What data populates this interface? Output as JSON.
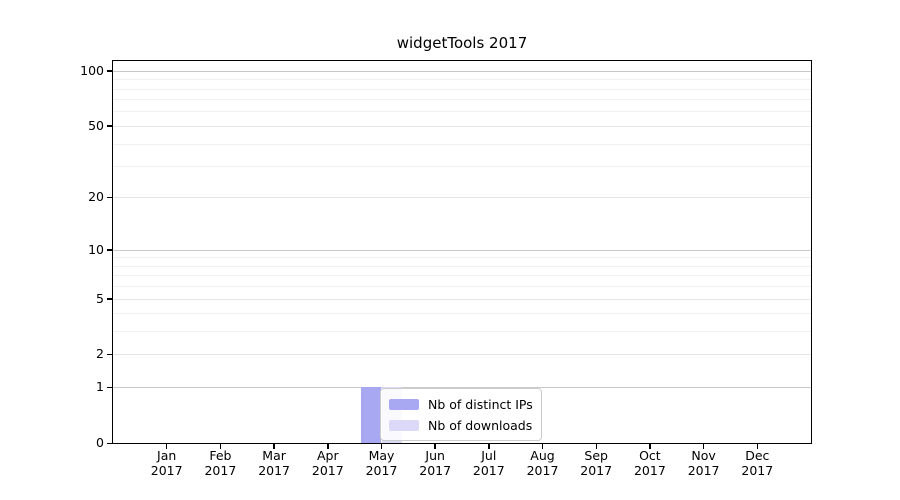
{
  "title": "widgetTools 2017",
  "chart_data": {
    "type": "bar",
    "title": "widgetTools 2017",
    "categories": [
      "Jan",
      "Feb",
      "Mar",
      "Apr",
      "May",
      "Jun",
      "Jul",
      "Aug",
      "Sep",
      "Oct",
      "Nov",
      "Dec"
    ],
    "category_subline": "2017",
    "series": [
      {
        "name": "Nb of distinct IPs",
        "color": "#a8a8f2",
        "values": [
          0,
          0,
          0,
          0,
          1,
          0,
          0,
          0,
          0,
          0,
          0,
          0
        ]
      },
      {
        "name": "Nb of downloads",
        "color": "#dadaf8",
        "values": [
          0,
          0,
          0,
          0,
          1,
          0,
          0,
          0,
          0,
          0,
          0,
          0
        ]
      }
    ],
    "yscale": "log1p",
    "ylim": [
      0,
      113
    ],
    "yticks": [
      0,
      1,
      2,
      5,
      10,
      20,
      50,
      100
    ],
    "ytick_labels": [
      "0",
      "1",
      "2",
      "5",
      "10",
      "20",
      "50",
      "100"
    ],
    "minor_gridlines": [
      3,
      4,
      6,
      7,
      8,
      9,
      30,
      40,
      60,
      70,
      80,
      90
    ],
    "grid": "horizontal",
    "legend_position": "inside-bottom-center",
    "colors": {
      "background": "#ffffff",
      "axis": "#000000",
      "grid_major": "#c9c9c9",
      "grid_mid": "#e6e6e6",
      "grid_minor": "#f0f0f0",
      "text": "#000000"
    }
  }
}
